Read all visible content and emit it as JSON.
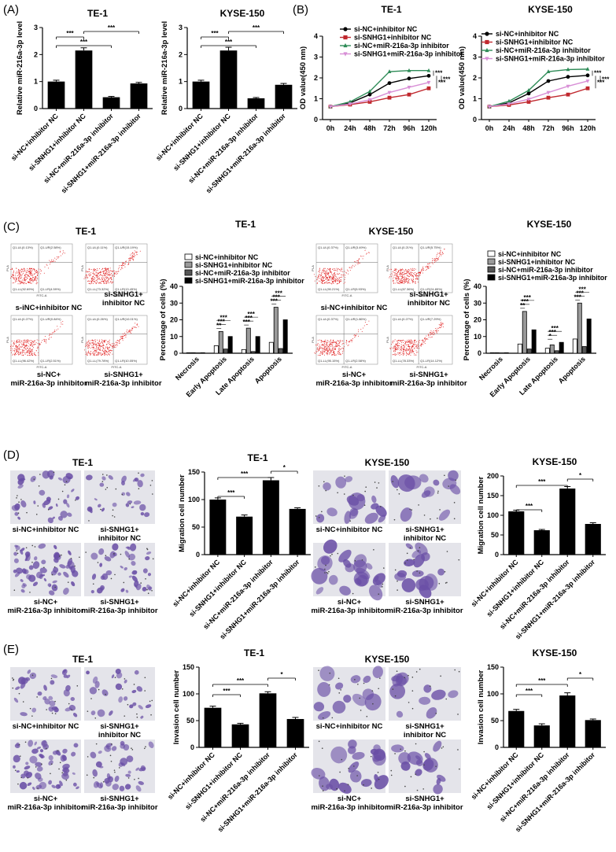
{
  "panels": [
    {
      "letter": "(A)"
    },
    {
      "letter": "(B)"
    },
    {
      "letter": "(C)"
    },
    {
      "letter": "(D)"
    },
    {
      "letter": "(E)"
    }
  ],
  "colors": {
    "black": "#000000",
    "red": "#c0282e",
    "green": "#2e8b57",
    "pink": "#d88fd6",
    "gray": "#9a9a9a",
    "dark_gray": "#555555",
    "stain": "#6a4fa6"
  },
  "chart_data": [
    {
      "id": "A1",
      "type": "bar",
      "title": "TE-1",
      "ylabel": "Relative miR-216a-3p level",
      "ylim": [
        0,
        3
      ],
      "yticks": [
        0,
        1,
        2,
        3
      ],
      "categories": [
        "si-NC+inhibitor NC",
        "si-SNHG1+inhibitor NC",
        "si-NC+miR-216a-3p inhibitor",
        "si-SNHG1+miR-216a-3p inhibitor"
      ],
      "values": [
        1.0,
        2.15,
        0.42,
        0.93
      ],
      "errors": [
        0.05,
        0.1,
        0.03,
        0.04
      ],
      "significance": [
        {
          "from": 0,
          "to": 1,
          "label": "***"
        },
        {
          "from": 0,
          "to": 2,
          "label": "***"
        },
        {
          "from": 1,
          "to": 3,
          "label": "***"
        }
      ]
    },
    {
      "id": "A2",
      "type": "bar",
      "title": "KYSE-150",
      "ylabel": "Relative miR-216a-3p level",
      "ylim": [
        0,
        3
      ],
      "yticks": [
        0,
        1,
        2,
        3
      ],
      "categories": [
        "si-NC+inhibitor NC",
        "si-SNHG1+inhibitor NC",
        "si-NC+miR-216a-3p inhibitor",
        "si-SNHG1+miR-216a-3p inhibitor"
      ],
      "values": [
        1.0,
        2.15,
        0.38,
        0.88
      ],
      "errors": [
        0.05,
        0.12,
        0.03,
        0.05
      ],
      "significance": [
        {
          "from": 0,
          "to": 1,
          "label": "***"
        },
        {
          "from": 0,
          "to": 2,
          "label": "***"
        },
        {
          "from": 1,
          "to": 3,
          "label": "***"
        }
      ]
    },
    {
      "id": "B1",
      "type": "line",
      "title": "TE-1",
      "ylabel": "OD value(450 nm)",
      "ylim": [
        0,
        4
      ],
      "yticks": [
        0,
        1,
        2,
        3,
        4
      ],
      "x": [
        "0h",
        "24h",
        "48h",
        "72h",
        "96h",
        "120h"
      ],
      "legend": "top-left",
      "series": [
        {
          "name": "si-NC+inhibitor NC",
          "color": "#000000",
          "marker": "circle",
          "values": [
            0.62,
            0.8,
            1.2,
            1.75,
            1.97,
            2.1
          ]
        },
        {
          "name": "si-SNHG1+inhibitor NC",
          "color": "#c0282e",
          "marker": "square",
          "values": [
            0.62,
            0.72,
            0.85,
            1.05,
            1.2,
            1.5
          ]
        },
        {
          "name": "si-NC+miR-216a-3p inhibitor",
          "color": "#2e8b57",
          "marker": "triangle",
          "values": [
            0.62,
            0.85,
            1.35,
            2.3,
            2.35,
            2.35
          ]
        },
        {
          "name": "si-SNHG1+miR-216a-3p inhibitor",
          "color": "#d88fd6",
          "marker": "triangle-down",
          "values": [
            0.62,
            0.75,
            0.95,
            1.3,
            1.55,
            1.78
          ]
        }
      ],
      "significance": [
        "***",
        "***",
        "***"
      ]
    },
    {
      "id": "B2",
      "type": "line",
      "title": "KYSE-150",
      "ylabel": "OD value(450 nm)",
      "ylim": [
        0,
        4
      ],
      "yticks": [
        0,
        1,
        2,
        3,
        4
      ],
      "x": [
        "0h",
        "24h",
        "48h",
        "72h",
        "96h",
        "120h"
      ],
      "legend": "top-left",
      "series": [
        {
          "name": "si-NC+inhibitor NC",
          "color": "#000000",
          "marker": "circle",
          "values": [
            0.62,
            0.8,
            1.25,
            1.85,
            2.05,
            2.12
          ]
        },
        {
          "name": "si-SNHG1+inhibitor NC",
          "color": "#c0282e",
          "marker": "square",
          "values": [
            0.62,
            0.7,
            0.85,
            1.05,
            1.2,
            1.5
          ]
        },
        {
          "name": "si-NC+miR-216a-3p inhibitor",
          "color": "#2e8b57",
          "marker": "triangle",
          "values": [
            0.62,
            0.88,
            1.4,
            2.3,
            2.4,
            2.42
          ]
        },
        {
          "name": "si-SNHG1+miR-216a-3p inhibitor",
          "color": "#d88fd6",
          "marker": "triangle-down",
          "values": [
            0.62,
            0.75,
            0.98,
            1.3,
            1.6,
            1.85
          ]
        }
      ],
      "significance": [
        "***",
        "***",
        "***"
      ]
    },
    {
      "id": "C1",
      "type": "bar",
      "title": "TE-1",
      "ylabel": "Percentage of cells (%)",
      "ylim": [
        0,
        40
      ],
      "yticks": [
        0,
        10,
        20,
        30,
        40
      ],
      "categories": [
        "Necrosis",
        "Early Apoptosis",
        "Late Apoptosis",
        "Apoptosis"
      ],
      "legend": "top-left",
      "series": [
        {
          "name": "si-NC+inhibitor NC",
          "fill": "#ffffff",
          "values": [
            0.3,
            4.5,
            2.2,
            6.5
          ]
        },
        {
          "name": "si-SNHG1+inhibitor NC",
          "fill": "#9a9a9a",
          "values": [
            0.3,
            13,
            15,
            27.5
          ]
        },
        {
          "name": "si-NC+miR-216a-3p inhibitor",
          "fill": "#555555",
          "values": [
            0.2,
            2.5,
            1.0,
            2.8
          ]
        },
        {
          "name": "si-SNHG1+miR-216a-3p inhibitor",
          "fill": "#000000",
          "values": [
            0.3,
            10,
            10,
            20
          ]
        }
      ],
      "significance": [
        {
          "group": 1,
          "labels": [
            "**",
            "***",
            "***"
          ]
        },
        {
          "group": 2,
          "labels": [
            "***",
            "***",
            "***"
          ]
        },
        {
          "group": 3,
          "labels": [
            "***",
            "***",
            "***"
          ]
        }
      ]
    },
    {
      "id": "C2",
      "type": "bar",
      "title": "KYSE-150",
      "ylabel": "Percentage of cells (%)",
      "ylim": [
        0,
        40
      ],
      "yticks": [
        0,
        10,
        20,
        30,
        40
      ],
      "categories": [
        "Necrosis",
        "Early Apoptosis",
        "Late Apoptosis",
        "Apoptosis"
      ],
      "legend": "top-left",
      "series": [
        {
          "name": "si-NC+inhibitor NC",
          "fill": "#ffffff",
          "values": [
            0.3,
            5.5,
            3.0,
            8.5
          ]
        },
        {
          "name": "si-SNHG1+inhibitor NC",
          "fill": "#9a9a9a",
          "values": [
            0.3,
            25,
            5.0,
            30
          ]
        },
        {
          "name": "si-NC+miR-216a-3p inhibitor",
          "fill": "#555555",
          "values": [
            0.2,
            2.5,
            1.5,
            4.0
          ]
        },
        {
          "name": "si-SNHG1+miR-216a-3p inhibitor",
          "fill": "#000000",
          "values": [
            0.3,
            14,
            6.5,
            20.5
          ]
        }
      ],
      "significance": [
        {
          "group": 1,
          "labels": [
            "**",
            "***",
            "***"
          ]
        },
        {
          "group": 2,
          "labels": [
            "*",
            "***",
            "***"
          ]
        },
        {
          "group": 3,
          "labels": [
            "***",
            "***",
            "***"
          ]
        }
      ]
    },
    {
      "id": "D1",
      "type": "bar",
      "title": "TE-1",
      "ylabel": "Migration cell number",
      "ylim": [
        0,
        150
      ],
      "yticks": [
        0,
        50,
        100,
        150
      ],
      "categories": [
        "si-NC+inhibitor NC",
        "si-SNHG1+inhibitor NC",
        "si-NC+miR-216a-3p inhibitor",
        "si-SNHG1+miR-216a-3p inhibitor"
      ],
      "values": [
        100,
        69,
        135,
        83
      ],
      "errors": [
        3,
        3,
        5,
        2
      ],
      "significance": [
        {
          "from": 0,
          "to": 1,
          "label": "***"
        },
        {
          "from": 0,
          "to": 2,
          "label": "***"
        },
        {
          "from": 2,
          "to": 3,
          "label": "*"
        }
      ]
    },
    {
      "id": "D2",
      "type": "bar",
      "title": "KYSE-150",
      "ylabel": "Migration cell number",
      "ylim": [
        0,
        200
      ],
      "yticks": [
        0,
        50,
        100,
        150,
        200
      ],
      "categories": [
        "si-NC+inhibitor NC",
        "si-SNHG1+inhibitor NC",
        "si-NC+miR-216a-3p inhibitor",
        "si-SNHG1+miR-216a-3p inhibitor"
      ],
      "values": [
        110,
        62,
        168,
        78
      ],
      "errors": [
        3,
        2,
        5,
        3
      ],
      "significance": [
        {
          "from": 0,
          "to": 1,
          "label": "***"
        },
        {
          "from": 0,
          "to": 2,
          "label": "***"
        },
        {
          "from": 2,
          "to": 3,
          "label": "*"
        }
      ]
    },
    {
      "id": "E1",
      "type": "bar",
      "title": "TE-1",
      "ylabel": "Invasion cell number",
      "ylim": [
        0,
        150
      ],
      "yticks": [
        0,
        50,
        100,
        150
      ],
      "categories": [
        "si-NC+inhibitor NC",
        "si-SNHG1+inhibitor NC",
        "si-NC+miR-216a-3p inhibitor",
        "si-SNHG1+miR-216a-3p inhibitor"
      ],
      "values": [
        74,
        43,
        101,
        53
      ],
      "errors": [
        3,
        2,
        3,
        3
      ],
      "significance": [
        {
          "from": 0,
          "to": 1,
          "label": "***"
        },
        {
          "from": 0,
          "to": 2,
          "label": "***"
        },
        {
          "from": 2,
          "to": 3,
          "label": "*"
        }
      ]
    },
    {
      "id": "E2",
      "type": "bar",
      "title": "KYSE-150",
      "ylabel": "Invasion cell number",
      "ylim": [
        0,
        150
      ],
      "yticks": [
        0,
        50,
        100,
        150
      ],
      "categories": [
        "si-NC+inhibitor NC",
        "si-SNHG1+inhibitor NC",
        "si-NC+miR-216a-3p inhibitor",
        "si-SNHG1+miR-216a-3p inhibitor"
      ],
      "values": [
        68,
        41,
        97,
        51
      ],
      "errors": [
        3,
        3,
        5,
        2
      ],
      "significance": [
        {
          "from": 0,
          "to": 1,
          "label": "***"
        },
        {
          "from": 0,
          "to": 2,
          "label": "***"
        },
        {
          "from": 2,
          "to": 3,
          "label": "*"
        }
      ]
    }
  ],
  "flow_panels": [
    {
      "title": "TE-1",
      "captions": [
        "s-iNC+inhibitor NC",
        "si-SNHG1+ inhibitor NC",
        "si-NC+ miR-216a-3p inhibitor",
        "si-SNHG1+ miR-216a-3p inhibitor"
      ],
      "quadrants": [
        [
          "Q1-UL(0.13%)",
          "Q1-UR(2.58%)",
          "Q1-LL(92.69%)",
          "Q1-LR(4.59%)"
        ],
        [
          "Q1-UL(0.11%)",
          "Q1-UR(15.19%)",
          "Q1-LL(73.32%)",
          "Q1-LR(13.45%)"
        ],
        [
          "Q1-UL(0.27%)",
          "Q1-UR(0.84%)",
          "Q1-LL(96.42%)",
          "Q1-LR(2.51%)"
        ],
        [
          "Q1-UL(0.26%)",
          "Q1-UR(10.01%)",
          "Q1-LL(79.78%)",
          "Q1-LR(10.05%)"
        ]
      ],
      "axis_x": "FITC-A",
      "axis_y": "PI-A"
    },
    {
      "title": "KYSE-150",
      "captions": [
        "si-NC+inhibitor NC",
        "si-SNHG1+ inhibitor NC",
        "si-NC+ miR-216a-3p inhibitor",
        "si-SNHG1+ miR-216a-3p inhibitor"
      ],
      "quadrants": [
        [
          "Q1-UL(0.37%)",
          "Q1-UR(3.49%)",
          "Q1-LL(90.21%)",
          "Q1-LR(5.93%)"
        ],
        [
          "Q1-UL(0.21%)",
          "Q1-UR(5.75%)",
          "Q1-LL(67.36%)",
          "Q1-LR(24.89%)"
        ],
        [
          "Q1-UL(0.37%)",
          "Q1-UR(1.86%)",
          "Q1-LL(95.15%)",
          "Q1-LR(2.58%)"
        ],
        [
          "Q1-UL(0.27%)",
          "Q1-UR(7.29%)",
          "Q1-LL(78.33%)",
          "Q1-LR(14.12%)"
        ]
      ],
      "axis_x": "FITC-A",
      "axis_y": "PI-A"
    }
  ],
  "micro_panels": [
    {
      "id": "D-TE1",
      "title": "TE-1",
      "captions": [
        "si-NC+inhibitor NC",
        "si-SNHG1+ inhibitor NC",
        "si-NC+ miR-216a-3p inhibitor",
        "si-SNHG1+ miR-216a-3p inhibitor"
      ],
      "density": [
        0.5,
        0.35,
        0.9,
        0.6
      ],
      "size": "small"
    },
    {
      "id": "D-KYSE",
      "title": "KYSE-150",
      "captions": [
        "si-NC+inhibitor NC",
        "si-SNHG1+ inhibitor NC",
        "si-NC+ miR-216a-3p inhibitor",
        "si-SNHG1+ miR-216a-3p inhibitor"
      ],
      "density": [
        0.55,
        0.35,
        0.85,
        0.5
      ],
      "size": "large"
    },
    {
      "id": "E-TE1",
      "title": "TE-1",
      "captions": [
        "si-NC+inhibitor NC",
        "si-SNHG1+ inhibitor NC",
        "si-NC+ miR-216a-3p inhibitor",
        "si-SNHG1+ miR-216a-3p inhibitor"
      ],
      "density": [
        0.45,
        0.3,
        0.85,
        0.55
      ],
      "size": "small"
    },
    {
      "id": "E-KYSE",
      "title": "KYSE-150",
      "captions": [
        "si-NC+inhibitor NC",
        "si-SNHG1+ inhibitor NC",
        "si-NC+ miR-216a-3p inhibitor",
        "si-SNHG1+ miR-216a-3p inhibitor"
      ],
      "density": [
        0.4,
        0.25,
        0.7,
        0.45
      ],
      "size": "large"
    }
  ]
}
